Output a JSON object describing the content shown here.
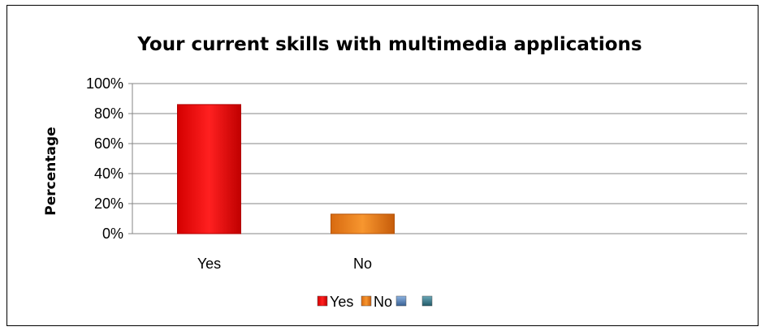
{
  "chart_data": {
    "type": "bar",
    "title": "Your current skills with multimedia applications",
    "xlabel": "",
    "ylabel": "Percentage",
    "categories": [
      "Yes",
      "No"
    ],
    "values": [
      86,
      13
    ],
    "ylim": [
      0,
      100
    ],
    "y_ticks": [
      "0%",
      "20%",
      "40%",
      "60%",
      "80%",
      "100%"
    ],
    "grid": true,
    "legend_position": "bottom",
    "colors": [
      "#ff0000",
      "#e46c0a"
    ],
    "legend": [
      {
        "label": "Yes",
        "color": "#ff0000"
      },
      {
        "label": "No",
        "color": "#e46c0a"
      },
      {
        "label": "",
        "color": "#4f81bd"
      },
      {
        "label": "",
        "color": "#31859c"
      }
    ]
  }
}
